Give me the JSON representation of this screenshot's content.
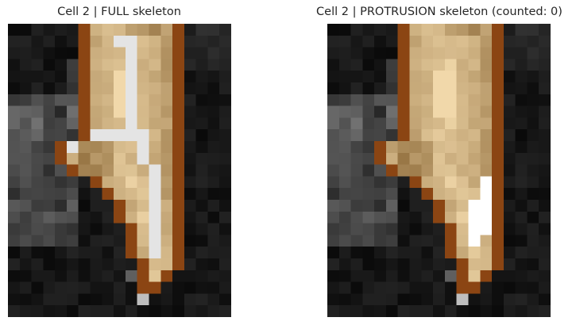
{
  "figure": {
    "panels": [
      {
        "title": "Cell 2 | FULL skeleton",
        "skeleton": "full"
      },
      {
        "title": "Cell 2 | PROTRUSION skeleton (counted: 0)",
        "skeleton": "protrusion"
      }
    ]
  },
  "colors": {
    "background": "#000000",
    "boundary": "#8b4513",
    "cell_fill_dark": "#7a5523",
    "cell_fill_light": "#f1d8aa",
    "skeleton": "#ffffff"
  }
}
